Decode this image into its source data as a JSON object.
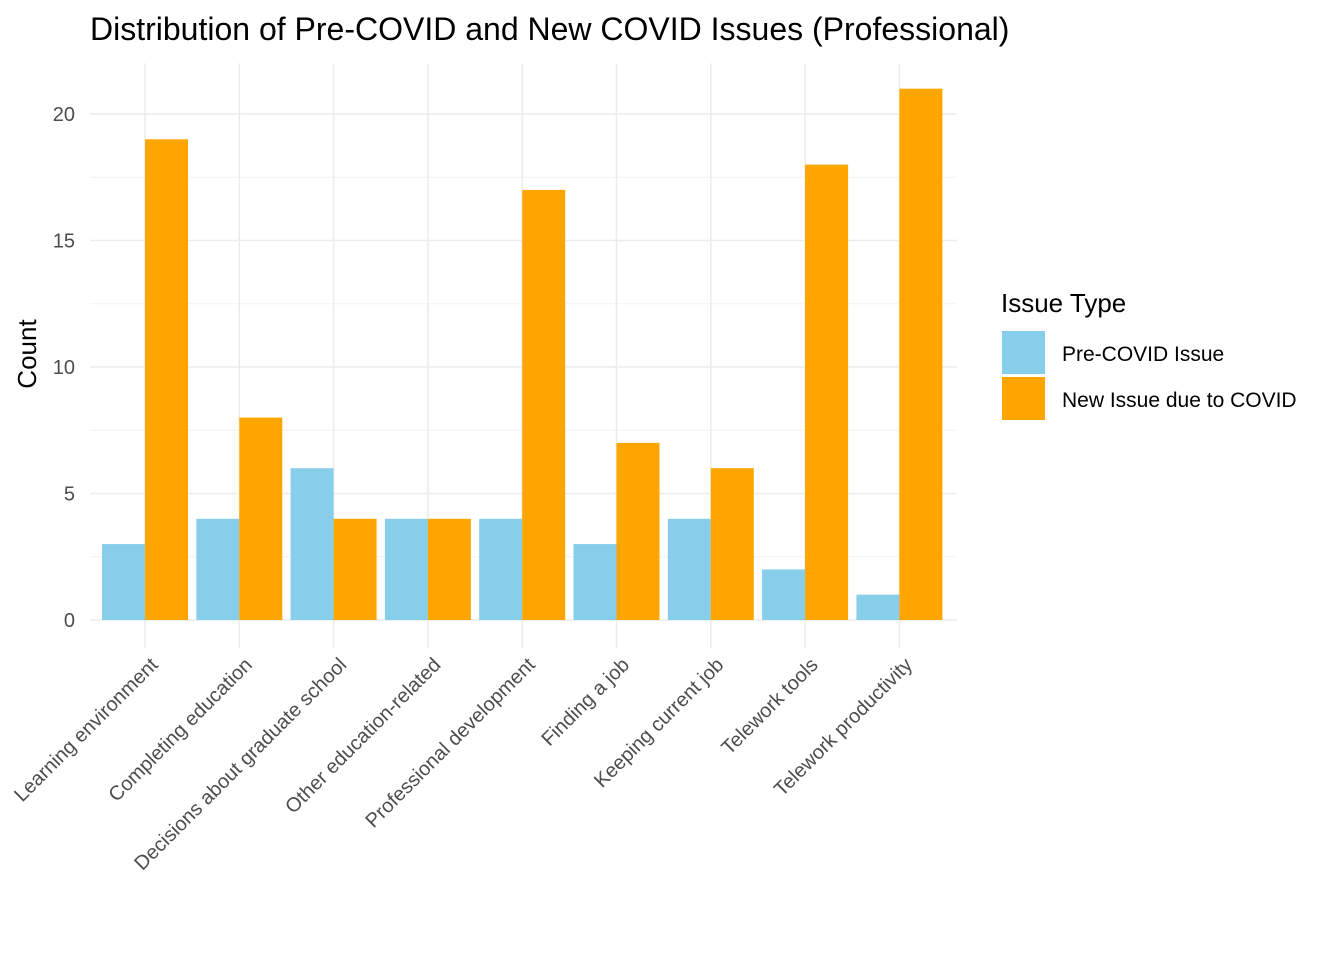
{
  "chart_data": {
    "type": "bar",
    "title": "Distribution of Pre-COVID and New COVID Issues (Professional)",
    "xlabel": "",
    "ylabel": "Count",
    "ylim": [
      0,
      22
    ],
    "yticks": [
      "0",
      "5",
      "10",
      "15",
      "20"
    ],
    "categories": [
      "Learning environment",
      "Completing education",
      "Decisions about graduate school",
      "Other education-related",
      "Professional development",
      "Finding a job",
      "Keeping current job",
      "Telework tools",
      "Telework productivity"
    ],
    "series": [
      {
        "name": "Pre-COVID Issue",
        "color": "#87CEEB",
        "values": [
          3,
          4,
          6,
          4,
          4,
          3,
          4,
          2,
          1
        ]
      },
      {
        "name": "New Issue due to COVID",
        "color": "#FFA500",
        "values": [
          19,
          8,
          4,
          4,
          17,
          7,
          6,
          18,
          21
        ]
      }
    ],
    "legend": {
      "title": "Issue Type",
      "position": "right"
    },
    "grid": true
  }
}
